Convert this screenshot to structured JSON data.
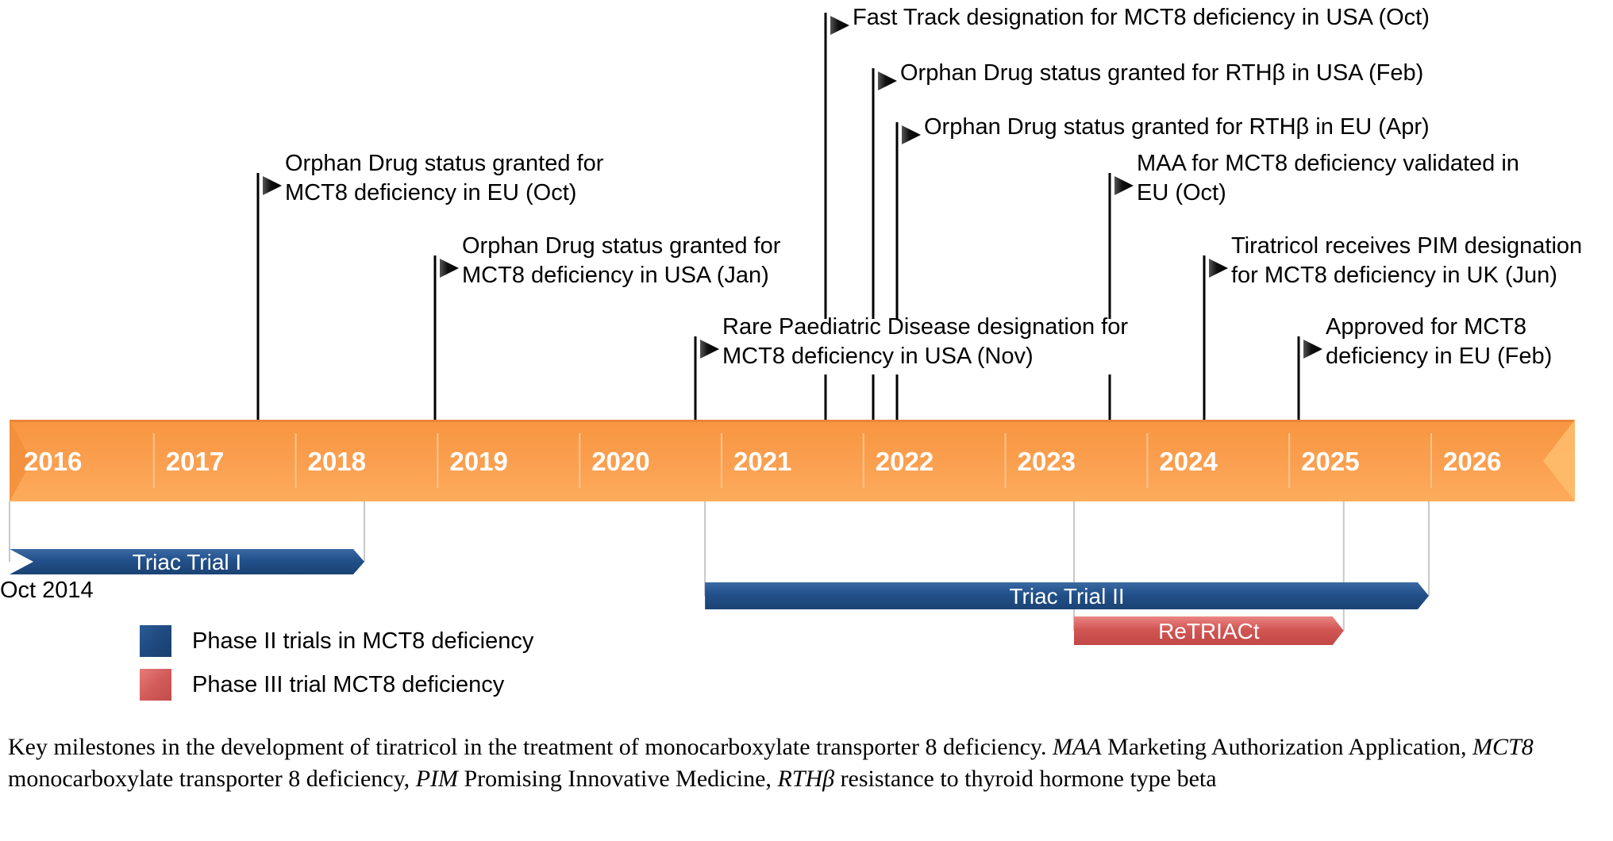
{
  "timeline": {
    "start_year": 2016,
    "end_year": 2026,
    "years": [
      "2016",
      "2017",
      "2018",
      "2019",
      "2020",
      "2021",
      "2022",
      "2023",
      "2024",
      "2025",
      "2026"
    ],
    "bar_color": "#f99b4b"
  },
  "milestones": [
    {
      "date": "2017-10",
      "text_lines": [
        "Orphan Drug status granted for",
        "MCT8 deficiency in EU (Oct)"
      ],
      "level": 4
    },
    {
      "date": "2019-01",
      "text_lines": [
        "Orphan Drug status granted for",
        "MCT8 deficiency in USA (Jan)"
      ],
      "level": 5
    },
    {
      "date": "2020-11",
      "text_lines": [
        "Rare Paediatric Disease designation for",
        "MCT8 deficiency in USA (Nov)"
      ],
      "level": 6
    },
    {
      "date": "2021-10",
      "text_lines": [
        "Fast Track designation for MCT8 deficiency in USA (Oct)"
      ],
      "level": 0
    },
    {
      "date": "2022-02",
      "text_lines": [
        "Orphan Drug status granted for RTHβ in USA (Feb)"
      ],
      "level": 1
    },
    {
      "date": "2022-04",
      "text_lines": [
        "Orphan Drug status granted for RTHβ in EU (Apr)"
      ],
      "level": 2
    },
    {
      "date": "2023-10",
      "text_lines": [
        "MAA for MCT8 deficiency validated in",
        "EU (Oct)"
      ],
      "level": 3
    },
    {
      "date": "2024-06",
      "text_lines": [
        "Tiratricol receives PIM designation",
        "for MCT8 deficiency in UK (Jun)"
      ],
      "level": 5
    },
    {
      "date": "2025-02",
      "text_lines": [
        "Approved for MCT8",
        "deficiency in EU (Feb)"
      ],
      "level": 6
    }
  ],
  "trials": [
    {
      "name": "Triac Trial I",
      "phase": "Phase II",
      "start": "2014-10",
      "start_label": "Oct 2014",
      "end_year_frac": 2018.5,
      "color": "#1f4a80",
      "row": 0
    },
    {
      "name": "Triac Trial II",
      "phase": "Phase II",
      "start_year_frac": 2020.9,
      "end_year_frac": 2026.0,
      "color": "#1f4a80",
      "row": 1
    },
    {
      "name": "ReTRIACt",
      "phase": "Phase III",
      "start_year_frac": 2023.5,
      "end_year_frac": 2025.4,
      "color": "#c9504e",
      "row": 2
    }
  ],
  "legend": [
    {
      "label": "Phase II trials in MCT8 deficiency",
      "color": "#1f4a80"
    },
    {
      "label": "Phase III trial MCT8 deficiency",
      "color": "#d35c5a"
    }
  ],
  "caption": {
    "segments": [
      {
        "text": "Key milestones in the development of tiratricol in the treatment of monocarboxylate transporter 8 deficiency. ",
        "italic": false
      },
      {
        "text": "MAA",
        "italic": true
      },
      {
        "text": " Marketing Authorization Application, ",
        "italic": false
      },
      {
        "text": "MCT8",
        "italic": true
      },
      {
        "text": " monocarboxylate transporter 8 deficiency, ",
        "italic": false
      },
      {
        "text": "PIM",
        "italic": true
      },
      {
        "text": " Promising Innovative Medicine, ",
        "italic": false
      },
      {
        "text": "RTHβ",
        "italic": true
      },
      {
        "text": " resistance to thyroid hormone type beta",
        "italic": false
      }
    ]
  }
}
